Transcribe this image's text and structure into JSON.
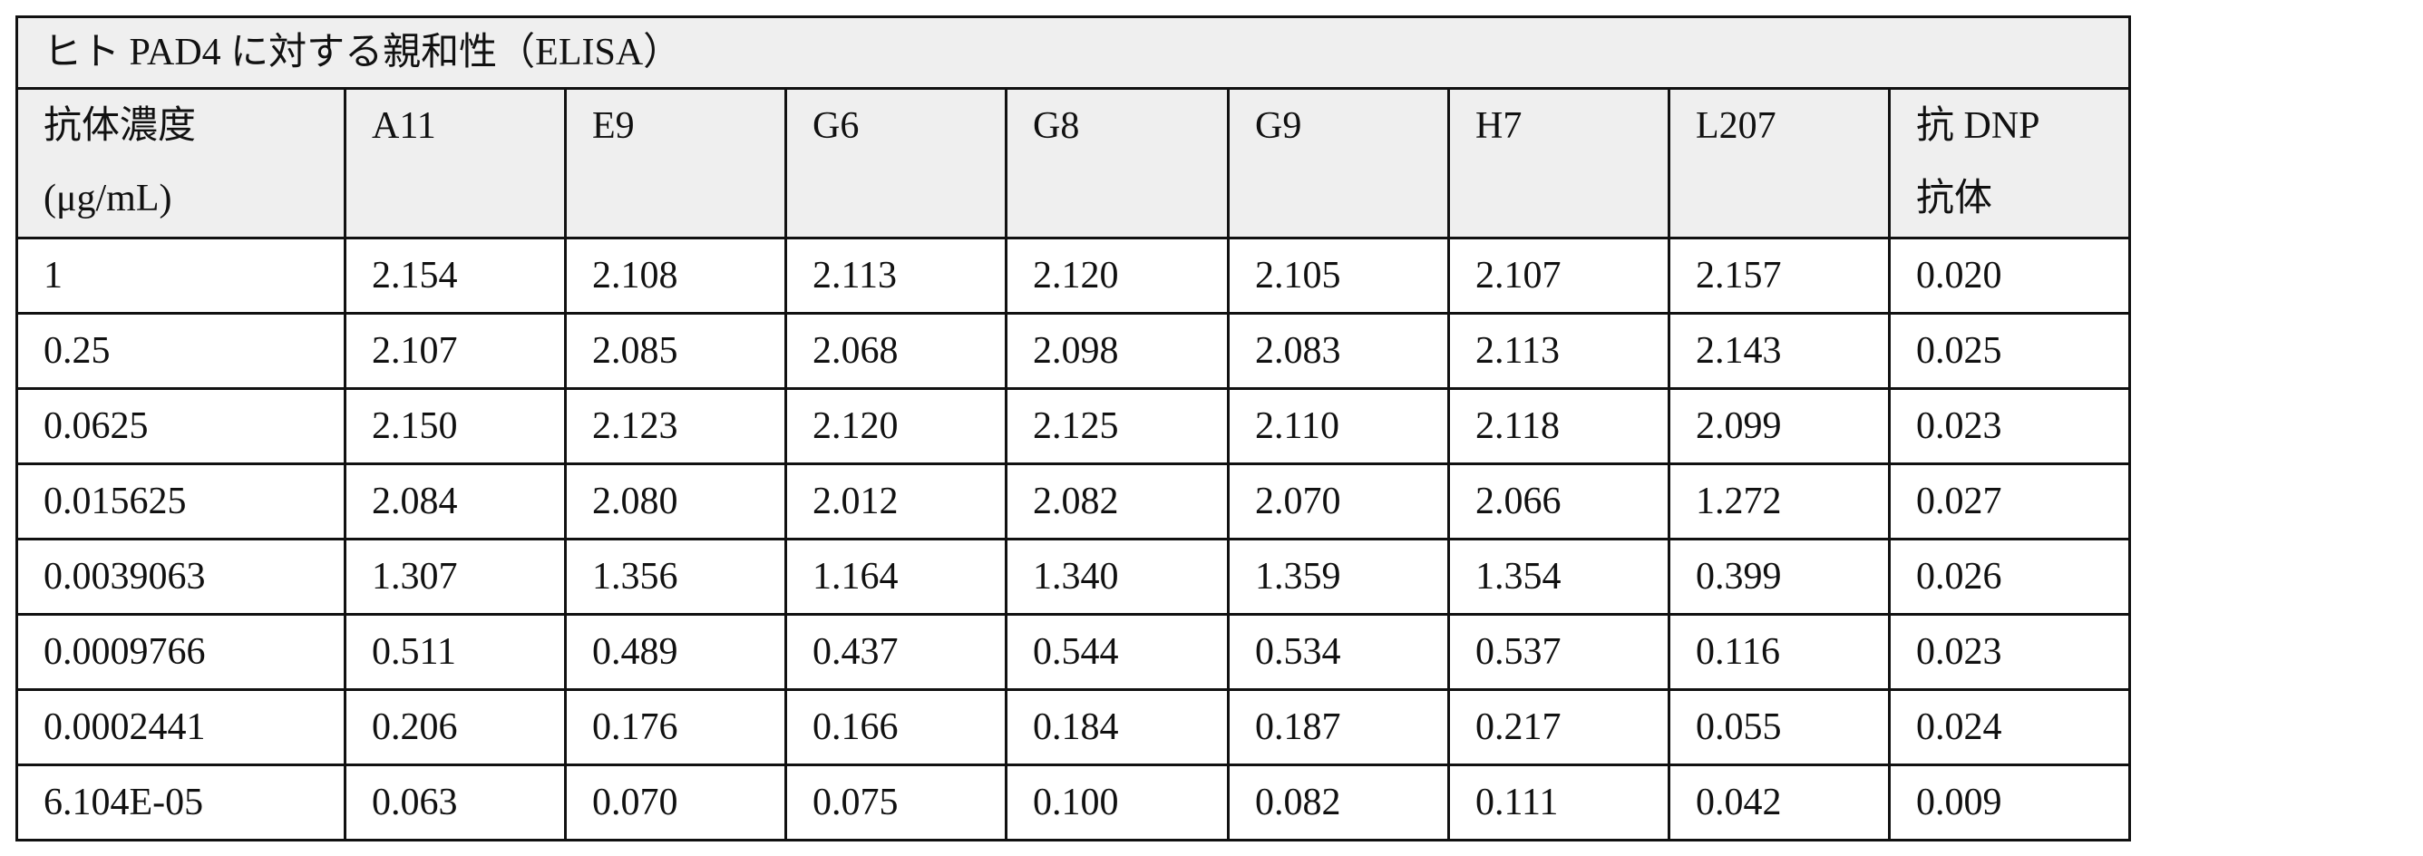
{
  "table": {
    "title": "ヒト PAD4 に対する親和性（ELISA）",
    "header": [
      "抗体濃度\n(μg/mL)",
      "A11",
      "E9",
      "G6",
      "G8",
      "G9",
      "H7",
      "L207",
      "抗 DNP\n抗体"
    ],
    "rows": [
      [
        "1",
        "2.154",
        "2.108",
        "2.113",
        "2.120",
        "2.105",
        "2.107",
        "2.157",
        "0.020"
      ],
      [
        "0.25",
        "2.107",
        "2.085",
        "2.068",
        "2.098",
        "2.083",
        "2.113",
        "2.143",
        "0.025"
      ],
      [
        "0.0625",
        "2.150",
        "2.123",
        "2.120",
        "2.125",
        "2.110",
        "2.118",
        "2.099",
        "0.023"
      ],
      [
        "0.015625",
        "2.084",
        "2.080",
        "2.012",
        "2.082",
        "2.070",
        "2.066",
        "1.272",
        "0.027"
      ],
      [
        "0.0039063",
        "1.307",
        "1.356",
        "1.164",
        "1.340",
        "1.359",
        "1.354",
        "0.399",
        "0.026"
      ],
      [
        "0.0009766",
        "0.511",
        "0.489",
        "0.437",
        "0.544",
        "0.534",
        "0.537",
        "0.116",
        "0.023"
      ],
      [
        "0.0002441",
        "0.206",
        "0.176",
        "0.166",
        "0.184",
        "0.187",
        "0.217",
        "0.055",
        "0.024"
      ],
      [
        "6.104E-05",
        "0.063",
        "0.070",
        "0.075",
        "0.100",
        "0.082",
        "0.111",
        "0.042",
        "0.009"
      ]
    ]
  }
}
